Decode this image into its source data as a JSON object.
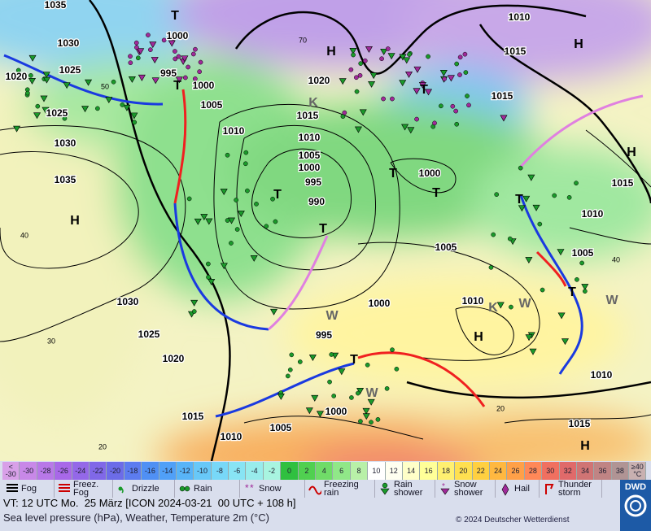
{
  "map": {
    "labels": [
      "1035",
      "T",
      "1000",
      "1010",
      "H",
      "1030",
      "H",
      "70",
      "1015",
      "1025",
      "1020",
      "995",
      "T",
      "1000",
      "1020",
      "50",
      "1015",
      "T",
      "1025",
      "1005",
      "K",
      "1015",
      "1010",
      "1010",
      "1030",
      "H",
      "1005",
      "1000",
      "T",
      "1000",
      "1035",
      "995",
      "1015",
      "T",
      "T",
      "990",
      "T",
      "H",
      "1010",
      "T",
      "40",
      "1005",
      "1005",
      "40",
      "T",
      "1000",
      "1010",
      "W",
      "W",
      "1030",
      "W",
      "K",
      "H",
      "1025",
      "995",
      "30",
      "T",
      "1020",
      "1010",
      "W",
      "20",
      "1015",
      "1000",
      "1015",
      "1005",
      "1010",
      "H",
      "20"
    ]
  },
  "scale": [
    {
      "label": "< -30",
      "color": "#d8a0e8"
    },
    {
      "label": "-30",
      "color": "#c888e8"
    },
    {
      "label": "-28",
      "color": "#b878e8"
    },
    {
      "label": "-26",
      "color": "#a868e8"
    },
    {
      "label": "-24",
      "color": "#9468e8"
    },
    {
      "label": "-22",
      "color": "#8068e8"
    },
    {
      "label": "-20",
      "color": "#6c6ce8"
    },
    {
      "label": "-18",
      "color": "#5c7cf0"
    },
    {
      "label": "-16",
      "color": "#5090f4"
    },
    {
      "label": "-14",
      "color": "#50a0f8"
    },
    {
      "label": "-12",
      "color": "#58b4f8"
    },
    {
      "label": "-10",
      "color": "#68c8f8"
    },
    {
      "label": "-8",
      "color": "#78d8f8"
    },
    {
      "label": "-6",
      "color": "#88e4f4"
    },
    {
      "label": "-4",
      "color": "#98ecec"
    },
    {
      "label": "-2",
      "color": "#a8f4e0"
    },
    {
      "label": "0",
      "color": "#30c040"
    },
    {
      "label": "2",
      "color": "#50d050"
    },
    {
      "label": "4",
      "color": "#70dc68"
    },
    {
      "label": "6",
      "color": "#90e888"
    },
    {
      "label": "8",
      "color": "#b8f0a8"
    },
    {
      "label": "10",
      "color": "#ffffff"
    },
    {
      "label": "12",
      "color": "#fffff0"
    },
    {
      "label": "14",
      "color": "#ffffc8"
    },
    {
      "label": "16",
      "color": "#ffff98"
    },
    {
      "label": "18",
      "color": "#fff070"
    },
    {
      "label": "20",
      "color": "#ffe050"
    },
    {
      "label": "22",
      "color": "#ffd040"
    },
    {
      "label": "24",
      "color": "#ffb840"
    },
    {
      "label": "26",
      "color": "#ffa048"
    },
    {
      "label": "28",
      "color": "#ff8858"
    },
    {
      "label": "30",
      "color": "#f07060"
    },
    {
      "label": "32",
      "color": "#e06a6a"
    },
    {
      "label": "34",
      "color": "#d07474"
    },
    {
      "label": "36",
      "color": "#c08484"
    },
    {
      "label": "38",
      "color": "#b09494"
    },
    {
      "label": "≥40 °C",
      "color": "#c8b0b0"
    }
  ],
  "legend": [
    "Fog",
    "Freez. Fog",
    "Drizzle",
    "Rain",
    "Snow",
    "Freezing rain",
    "Rain shower",
    "Snow shower",
    "Hail",
    "Thunder storm"
  ],
  "footer": {
    "valid_time": "VT: 12 UTC Mo.  25 März [ICON 2024-03-21  00 UTC + 108 h]",
    "description": "Sea level pressure (hPa), Weather, Temperature 2m (°C)",
    "copyright": "© 2024 Deutscher Wetterdienst",
    "logo": "DWD"
  }
}
